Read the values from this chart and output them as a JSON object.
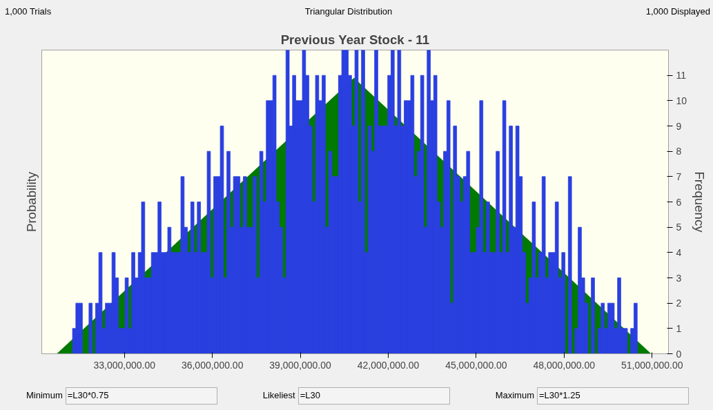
{
  "chart_data": {
    "type": "histogram",
    "title": "Previous Year Stock - 11",
    "ylabel": "Probability",
    "y2label": "Frequency",
    "annotations": [
      "1,000 Trials",
      "Triangular Distribution",
      "1,000 Displayed",
      "Minimum",
      "=L30*0.75",
      "Likeliest",
      "=L30",
      "Maximum",
      "=L30*1.25"
    ],
    "xlim": [
      30180000,
      51560000
    ],
    "xticks": [
      {
        "value": 33000000,
        "label": "33,000,000.00"
      },
      {
        "value": 36000000,
        "label": "36,000,000.00"
      },
      {
        "value": 39000000,
        "label": "39,000,000.00"
      },
      {
        "value": 42000000,
        "label": "42,000,000.00"
      },
      {
        "value": 45000000,
        "label": "45,000,000.00"
      },
      {
        "value": 48000000,
        "label": "48,000,000.00"
      },
      {
        "value": 51000000,
        "label": "51,000,000.00"
      }
    ],
    "y2lim": [
      0,
      12
    ],
    "y2ticks": [
      0,
      1,
      2,
      3,
      4,
      5,
      6,
      7,
      8,
      9,
      10,
      11
    ],
    "series": [
      {
        "type": "area",
        "axis": "y2",
        "color": "#007a00",
        "x": [
          30690000,
          40830000,
          50970000
        ],
        "values": [
          0,
          10.9,
          0
        ]
      },
      {
        "axis": "y2",
        "color": "#2a3fe0",
        "bins": [
          31230000,
          31342000,
          31454000,
          31566000,
          31678000,
          31790000,
          31902000,
          32014000,
          32126000,
          32238000,
          32350000,
          32462000,
          32574000,
          32686000,
          32798000,
          32910000,
          33022000,
          33134000,
          33246000,
          33358000,
          33470000,
          33582000,
          33694000,
          33806000,
          33918000,
          34030000,
          34142000,
          34254000,
          34366000,
          34478000,
          34590000,
          34702000,
          34814000,
          34926000,
          35038000,
          35150000,
          35262000,
          35374000,
          35486000,
          35598000,
          35710000,
          35822000,
          35934000,
          36046000,
          36158000,
          36270000,
          36382000,
          36494000,
          36606000,
          36718000,
          36830000,
          36942000,
          37054000,
          37166000,
          37278000,
          37390000,
          37502000,
          37614000,
          37726000,
          37838000,
          37950000,
          38062000,
          38174000,
          38286000,
          38398000,
          38510000,
          38622000,
          38734000,
          38846000,
          38958000,
          39070000,
          39182000,
          39294000,
          39406000,
          39518000,
          39630000,
          39742000,
          39854000,
          39966000,
          40078000,
          40190000,
          40302000,
          40414000,
          40526000,
          40638000,
          40750000,
          40862000,
          40974000,
          41086000,
          41198000,
          41310000,
          41422000,
          41534000,
          41646000,
          41758000,
          41870000,
          41982000,
          42094000,
          42206000,
          42318000,
          42430000,
          42542000,
          42654000,
          42766000,
          42878000,
          42990000,
          43102000,
          43214000,
          43326000,
          43438000,
          43550000,
          43662000,
          43774000,
          43886000,
          43998000,
          44110000,
          44222000,
          44334000,
          44446000,
          44558000,
          44670000,
          44782000,
          44894000,
          45006000,
          45118000,
          45230000,
          45342000,
          45454000,
          45566000,
          45678000,
          45790000,
          45902000,
          46014000,
          46126000,
          46238000,
          46350000,
          46462000,
          46574000,
          46686000,
          46798000,
          46910000,
          47022000,
          47134000,
          47246000,
          47358000,
          47470000,
          47582000,
          47694000,
          47806000,
          47918000,
          48030000,
          48142000,
          48254000,
          48366000,
          48478000,
          48590000,
          48702000,
          48814000,
          48926000,
          49038000,
          49150000,
          49262000,
          49374000,
          49486000,
          49598000,
          49710000,
          49822000,
          49934000,
          50046000,
          50158000,
          50270000,
          50382000,
          50494000
        ],
        "values": [
          1,
          2,
          2,
          0,
          0,
          2,
          0,
          2,
          4,
          1,
          2,
          2,
          4,
          3,
          1,
          1,
          3,
          1,
          4,
          3,
          4,
          6,
          3,
          3,
          4,
          4,
          6,
          4,
          4,
          5,
          4,
          4,
          4,
          7,
          5,
          4,
          6,
          4,
          6,
          4,
          4,
          8,
          3,
          7,
          7,
          9,
          3,
          8,
          5,
          7,
          7,
          5,
          7,
          5,
          5,
          7,
          3,
          8,
          6,
          10,
          10,
          11,
          6,
          5,
          3,
          12,
          9,
          11,
          10,
          10,
          12,
          11,
          9,
          6,
          11,
          10,
          11,
          5,
          8,
          7,
          7,
          11,
          12,
          12,
          11,
          9,
          12,
          6,
          12,
          4,
          9,
          8,
          12,
          9,
          9,
          9,
          11,
          12,
          9,
          12,
          9,
          10,
          10,
          11,
          7,
          8,
          11,
          5,
          12,
          10,
          11,
          6,
          5,
          8,
          10,
          2,
          9,
          7,
          6,
          7,
          8,
          4,
          4,
          5,
          10,
          4,
          6,
          4,
          4,
          8,
          4,
          10,
          4,
          9,
          5,
          9,
          7,
          4,
          2,
          3,
          6,
          3,
          4,
          7,
          3,
          4,
          4,
          6,
          3,
          4,
          0,
          7,
          0,
          1,
          5,
          3,
          2,
          0,
          3,
          0,
          1,
          2,
          1,
          2,
          2,
          1,
          3,
          1,
          1,
          0,
          1,
          2
        ]
      }
    ]
  }
}
